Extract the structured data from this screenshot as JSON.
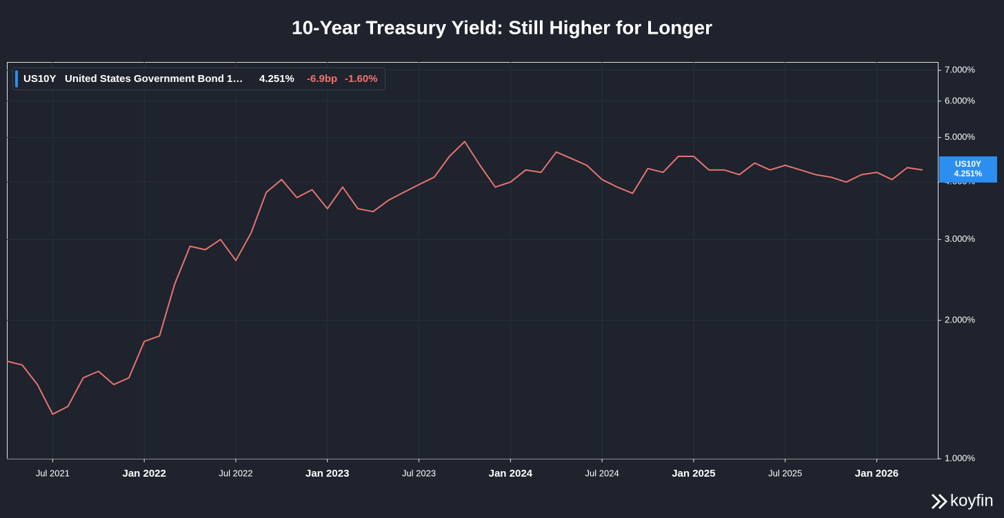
{
  "chart_data": {
    "type": "line",
    "title": "10-Year Treasury Yield: Still Higher for Longer",
    "x": [
      "2021-04",
      "2021-05",
      "2021-06",
      "2021-07",
      "2021-08",
      "2021-09",
      "2021-10",
      "2021-11",
      "2021-12",
      "2022-01",
      "2022-02",
      "2022-03",
      "2022-04",
      "2022-05",
      "2022-06",
      "2022-07",
      "2022-08",
      "2022-09",
      "2022-10",
      "2022-11",
      "2022-12",
      "2023-01",
      "2023-02",
      "2023-03",
      "2023-04",
      "2023-05",
      "2023-06",
      "2023-07",
      "2023-08",
      "2023-09",
      "2023-10",
      "2023-11",
      "2023-12",
      "2024-01",
      "2024-02",
      "2024-03",
      "2024-04",
      "2024-05",
      "2024-06",
      "2024-07",
      "2024-08",
      "2024-09",
      "2024-10",
      "2024-11",
      "2024-12",
      "2025-01",
      "2025-02",
      "2025-03",
      "2025-04",
      "2025-05",
      "2025-06",
      "2025-07",
      "2025-08",
      "2025-09",
      "2025-10",
      "2025-11",
      "2025-12",
      "2026-01",
      "2026-02",
      "2026-03",
      "2026-04"
    ],
    "series": [
      {
        "name": "US10Y",
        "color": "#e8746f",
        "values": [
          1.63,
          1.6,
          1.45,
          1.25,
          1.3,
          1.5,
          1.55,
          1.45,
          1.5,
          1.8,
          1.85,
          2.4,
          2.9,
          2.85,
          3.0,
          2.7,
          3.1,
          3.8,
          4.05,
          3.7,
          3.85,
          3.5,
          3.9,
          3.5,
          3.45,
          3.65,
          3.8,
          3.95,
          4.1,
          4.55,
          4.9,
          4.35,
          3.9,
          4.0,
          4.25,
          4.2,
          4.65,
          4.5,
          4.35,
          4.05,
          3.9,
          3.78,
          4.28,
          4.2,
          4.55,
          4.55,
          4.25,
          4.25,
          4.15,
          4.4,
          4.25,
          4.35,
          4.25,
          4.15,
          4.1,
          4.0,
          4.15,
          4.2,
          4.05,
          4.3,
          4.25
        ]
      }
    ],
    "legend": {
      "description": "United States Government Bond 1…",
      "last": "4.251%",
      "change_bp": "-6.9bp",
      "change_pct": "-1.60%"
    },
    "xlim": [
      "2021-04",
      "2026-05"
    ],
    "xticks": [
      {
        "value": "2021-07",
        "label": "Jul 2021"
      },
      {
        "value": "2022-01",
        "label": "Jan 2022"
      },
      {
        "value": "2022-07",
        "label": "Jul 2022"
      },
      {
        "value": "2023-01",
        "label": "Jan 2023"
      },
      {
        "value": "2023-07",
        "label": "Jul 2023"
      },
      {
        "value": "2024-01",
        "label": "Jan 2024"
      },
      {
        "value": "2024-07",
        "label": "Jul 2024"
      },
      {
        "value": "2025-01",
        "label": "Jan 2025"
      },
      {
        "value": "2025-07",
        "label": "Jul 2025"
      },
      {
        "value": "2026-01",
        "label": "Jan 2026"
      }
    ],
    "ylim": [
      1,
      7.3
    ],
    "yticks": [
      {
        "value": 1,
        "label": "1.000%"
      },
      {
        "value": 2,
        "label": "2.000%"
      },
      {
        "value": 3,
        "label": "3.000%"
      },
      {
        "value": 4,
        "label": "4.000%"
      },
      {
        "value": 5,
        "label": "5.000%"
      },
      {
        "value": 6,
        "label": "6.000%"
      },
      {
        "value": 7,
        "label": "7.000%"
      }
    ],
    "log_scale": true,
    "grid": true,
    "watermark": "koyfin"
  }
}
